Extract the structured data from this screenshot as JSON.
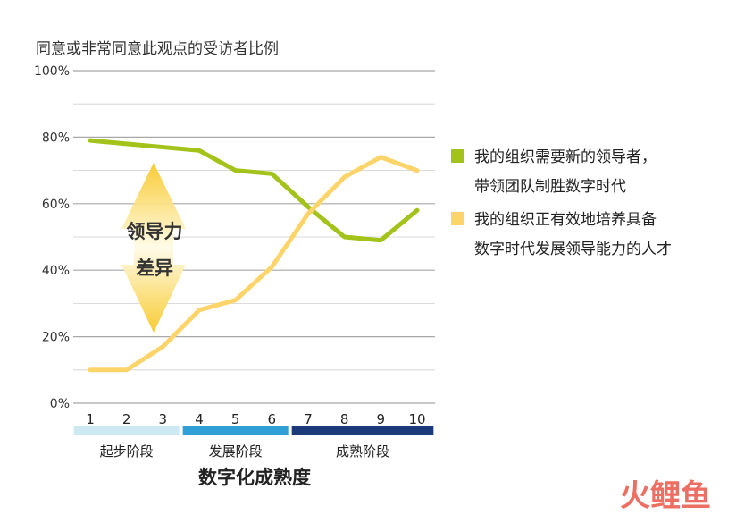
{
  "colors": {
    "series_1": "#a3c21a",
    "series_2": "#fdd46a",
    "stage_early": "#cdeaf2",
    "stage_mid": "#2f9fd6",
    "stage_mature": "#1b3a7a",
    "gap_arrow": "#fbe27a",
    "grid": "#bdbdbd",
    "watermark": "#e94a3c"
  },
  "chart_data": {
    "type": "line",
    "title": "同意或非常同意此观点的受访者比例",
    "xlabel": "数字化成熟度",
    "ylabel": "",
    "x": [
      1,
      2,
      3,
      4,
      5,
      6,
      7,
      8,
      9,
      10
    ],
    "xlim": [
      1,
      10
    ],
    "ylim": [
      0,
      100
    ],
    "yticks": [
      "0%",
      "20%",
      "40%",
      "60%",
      "80%",
      "100%"
    ],
    "grid": true,
    "legend_position": "right",
    "series": [
      {
        "name": "我的组织需要新的领导者，带领团队制胜数字时代",
        "name_lines": [
          "我的组织需要新的领导者，",
          "带领团队制胜数字时代"
        ],
        "color": "#a3c21a",
        "values": [
          79,
          78,
          77,
          76,
          70,
          69,
          59,
          50,
          49,
          58
        ]
      },
      {
        "name": "我的组织正有效地培养具备数字时代发展领导能力的人才",
        "name_lines": [
          "我的组织正有效地培养具备",
          "数字时代发展领导能力的人才"
        ],
        "color": "#fdd46a",
        "values": [
          10,
          10,
          17,
          28,
          31,
          41,
          57,
          68,
          74,
          70
        ]
      }
    ],
    "stages": [
      {
        "label": "起步阶段",
        "from": 1,
        "to": 3,
        "color": "#cdeaf2"
      },
      {
        "label": "发展阶段",
        "from": 4,
        "to": 6,
        "color": "#2f9fd6"
      },
      {
        "label": "成熟阶段",
        "from": 7,
        "to": 10,
        "color": "#1b3a7a"
      }
    ],
    "annotations": [
      {
        "text": "领导力",
        "x": 2,
        "y": 52
      },
      {
        "text": "差异",
        "x": 2,
        "y": 41
      }
    ]
  },
  "watermark": {
    "text": "火鲤鱼"
  }
}
